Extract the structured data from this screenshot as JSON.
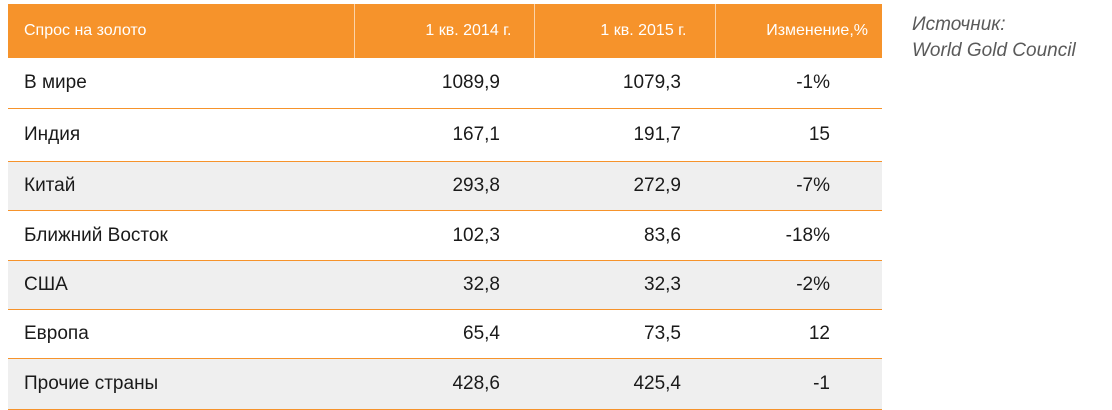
{
  "source": {
    "label": "Источник:",
    "name": "World Gold Council"
  },
  "chart_data": {
    "type": "table",
    "columns": [
      "Спрос на золото",
      "1 кв. 2014 г.",
      "1 кв. 2015 г.",
      "Изменение,%"
    ],
    "rows": [
      {
        "name": "В мире",
        "q1_2014": "1089,9",
        "q1_2015": "1079,3",
        "change": "-1%"
      },
      {
        "name": "Индия",
        "q1_2014": "167,1",
        "q1_2015": "191,7",
        "change": "15"
      },
      {
        "name": "Китай",
        "q1_2014": "293,8",
        "q1_2015": "272,9",
        "change": "-7%"
      },
      {
        "name": "Ближний Восток",
        "q1_2014": "102,3",
        "q1_2015": "83,6",
        "change": "-18%"
      },
      {
        "name": "США",
        "q1_2014": "32,8",
        "q1_2015": "32,3",
        "change": "-2%"
      },
      {
        "name": "Европа",
        "q1_2014": "65,4",
        "q1_2015": "73,5",
        "change": "12"
      },
      {
        "name": "Прочие страны",
        "q1_2014": "428,6",
        "q1_2015": "425,4",
        "change": "-1"
      }
    ],
    "colors": {
      "header_bg": "#f6932b",
      "header_text": "#ffffff",
      "row_shade": "#efefef",
      "row_rule": "#f6932b"
    }
  }
}
